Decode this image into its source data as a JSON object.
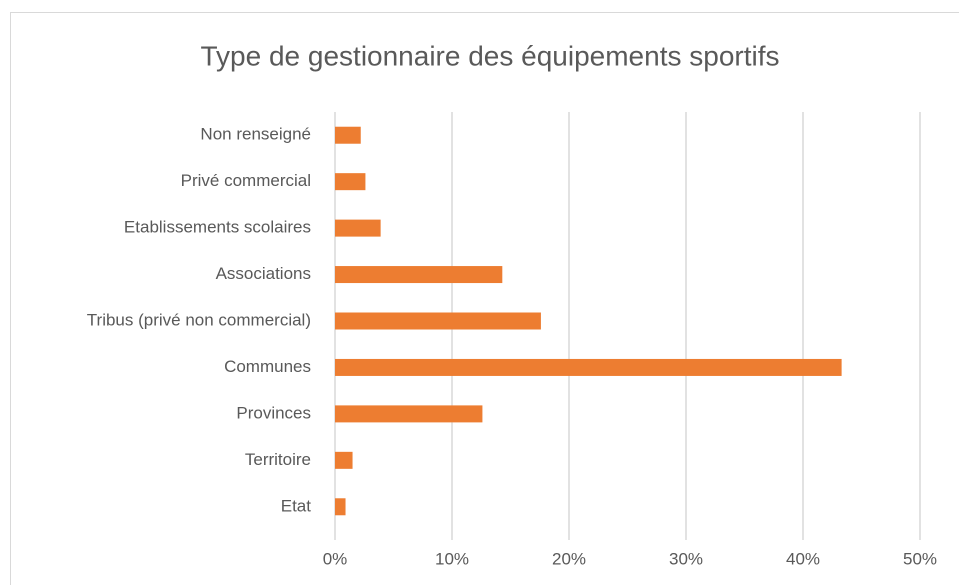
{
  "chart_data": {
    "type": "bar",
    "orientation": "horizontal",
    "title": "Type de gestionnaire des équipements sportifs",
    "categories": [
      "Non renseigné",
      "Privé commercial",
      "Etablissements scolaires",
      "Associations",
      "Tribus (privé non commercial)",
      "Communes",
      "Provinces",
      "Territoire",
      "Etat"
    ],
    "values": [
      2.2,
      2.6,
      3.9,
      14.3,
      17.6,
      43.3,
      12.6,
      1.5,
      0.9
    ],
    "color": "#ed7d31",
    "xlim": [
      0,
      50
    ],
    "xticks": [
      {
        "value": 0,
        "label": "0%"
      },
      {
        "value": 10,
        "label": "10%"
      },
      {
        "value": 20,
        "label": "20%"
      },
      {
        "value": 30,
        "label": "30%"
      },
      {
        "value": 40,
        "label": "40%"
      },
      {
        "value": 50,
        "label": "50%"
      }
    ],
    "grid": true
  }
}
